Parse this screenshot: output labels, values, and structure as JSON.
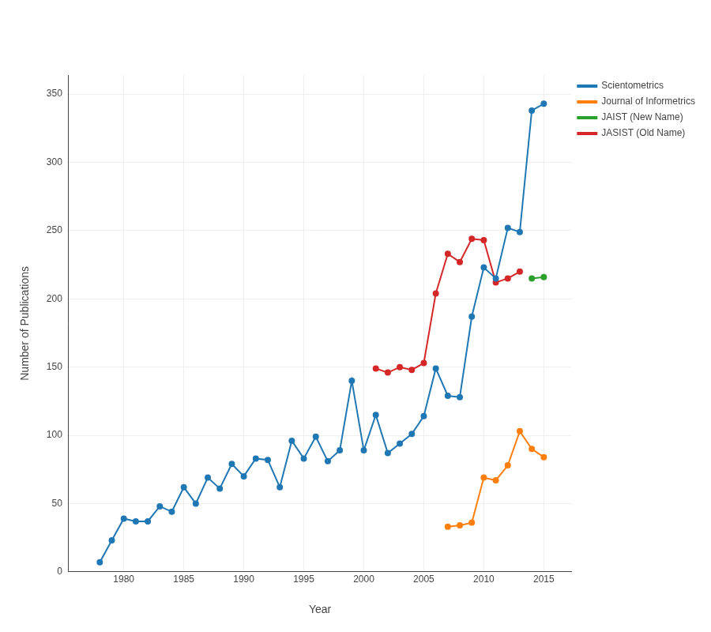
{
  "chart_data": {
    "type": "line",
    "x_label": "Year",
    "y_label": "Number of Publications",
    "xlim": [
      1975.4,
      2017.3
    ],
    "xticks": [
      1980,
      1985,
      1990,
      1995,
      2000,
      2005,
      2010,
      2015
    ],
    "ylim": [
      0,
      364
    ],
    "yticks": [
      0,
      50,
      100,
      150,
      200,
      250,
      300,
      350
    ],
    "grid": true,
    "legend": "top-right",
    "series": [
      {
        "name": "Scientometrics",
        "color": "#1f77b4",
        "marker": "circle",
        "line_style": "solid",
        "x": [
          1978,
          1979,
          1980,
          1981,
          1982,
          1983,
          1984,
          1985,
          1986,
          1987,
          1988,
          1989,
          1990,
          1991,
          1992,
          1993,
          1994,
          1995,
          1996,
          1997,
          1998,
          1999,
          2000,
          2001,
          2002,
          2003,
          2004,
          2005,
          2006,
          2007,
          2008,
          2009,
          2010,
          2011,
          2012,
          2013,
          2014,
          2015
        ],
        "values": [
          7,
          23,
          39,
          37,
          37,
          48,
          44,
          62,
          50,
          69,
          61,
          79,
          70,
          83,
          82,
          62,
          96,
          83,
          99,
          81,
          89,
          140,
          89,
          115,
          87,
          94,
          101,
          114,
          149,
          129,
          128,
          187,
          223,
          215,
          252,
          249,
          338,
          343
        ]
      },
      {
        "name": "Journal of Informetrics",
        "color": "#ff7f0e",
        "marker": "circle",
        "line_style": "solid",
        "x": [
          2007,
          2008,
          2009,
          2010,
          2011,
          2012,
          2013,
          2014,
          2015
        ],
        "values": [
          33,
          34,
          36,
          69,
          67,
          78,
          103,
          90,
          84
        ]
      },
      {
        "name": "JAIST (New Name)",
        "color": "#2ca02c",
        "marker": "circle",
        "line_style": "solid",
        "x": [
          2014,
          2015
        ],
        "values": [
          215,
          216
        ]
      },
      {
        "name": "JASIST (Old Name)",
        "color": "#d62728",
        "marker": "circle",
        "line_style": "solid",
        "x": [
          2001,
          2002,
          2003,
          2004,
          2005,
          2006,
          2007,
          2008,
          2009,
          2010,
          2011,
          2012,
          2013
        ],
        "values": [
          149,
          146,
          150,
          148,
          153,
          204,
          233,
          227,
          244,
          243,
          212,
          215,
          220
        ]
      }
    ]
  }
}
